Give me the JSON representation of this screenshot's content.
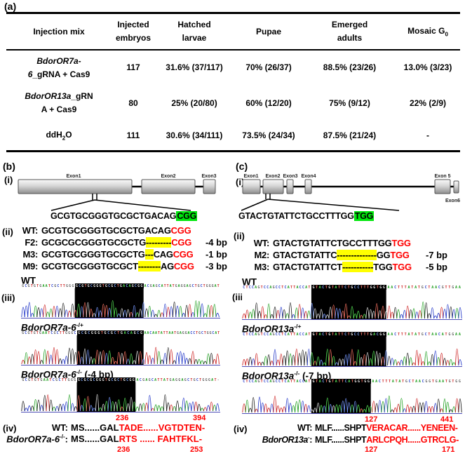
{
  "panel_labels": {
    "a": "(a)",
    "b": "(b)",
    "c": "(c)"
  },
  "roman": {
    "i": "(i)",
    "ii": "(ii)",
    "iii": "(iii)",
    "iv": "(iv)"
  },
  "colors": {
    "pam_green": "#00e60c",
    "mutation_red": "#ff0000",
    "deletion_yellow": "#ffff00"
  },
  "table": {
    "h_injection_mix": "Injection mix",
    "h_injected_1": "Injected",
    "h_injected_2": "embryos",
    "h_hatched_1": "Hatched",
    "h_hatched_2": "larvae",
    "h_pupae": "Pupae",
    "h_emerged_1": "Emerged",
    "h_emerged_2": "adults",
    "h_mosaic_main": "Mosaic G",
    "h_mosaic_sub": "0",
    "rows": [
      {
        "name_l1_it": "BdorOR7a-",
        "name_l1_rg": "",
        "name_l2_it": "6",
        "name_l2_rg": "_gRNA + Cas9",
        "injected": "117",
        "hatched": "31.6% (37/117)",
        "pupae": "70% (26/37)",
        "emerged": "88.5% (23/26)",
        "mosaic": "13.0% (3/23)"
      },
      {
        "name_l1_it": "BdorOR13a",
        "name_l1_rg": "_gRN",
        "name_l2_it": "",
        "name_l2_rg": "A + Cas9",
        "injected": "80",
        "hatched": "25% (20/80)",
        "pupae": "60% (12/20)",
        "emerged": "75% (9/12)",
        "mosaic": "22% (2/9)"
      },
      {
        "name_pre": "ddH",
        "name_sub": "2",
        "name_post": "O",
        "injected": "111",
        "hatched": "30.6% (34/111)",
        "pupae": "73.5% (24/34)",
        "emerged": "87.5% (21/24)",
        "mosaic": "-"
      }
    ]
  },
  "b": {
    "i": {
      "exons": [
        "Exon1",
        "Exon2",
        "Exon3"
      ],
      "seq": "GCGTGCGGGTGCGCTGACAG",
      "pam": "CGG"
    },
    "ii": {
      "rows": [
        {
          "label": "WT:",
          "pre": "GCGTGCGGGTGCGCTGACAG",
          "del": "",
          "mid": "",
          "pam": "CGG",
          "note": ""
        },
        {
          "label": "F2:",
          "pre": "GCGCGCGGGTGCGCTG",
          "del": "---------",
          "mid": "",
          "pam": "CGG",
          "note": "-4 bp"
        },
        {
          "label": "M3:",
          "pre": "GCGTGCGGGTGCGCTG",
          "del": "---",
          "mid": "CAG",
          "pam": "CGG",
          "note": "-1 bp"
        },
        {
          "label": "M9:",
          "pre": "GCGTGCGGGTGCGCT",
          "del": "--------",
          "mid": "AG",
          "pam": "CGG",
          "note": "-3 bp"
        }
      ]
    },
    "iii": {
      "traces": [
        {
          "label_base": "WT",
          "label_sup": "",
          "label_suffix": "",
          "seq_left": "GCGTGTGAATCGCTTGGG",
          "seq_boxed": "GCGTGCGGGTGCGCTGACAGCGG",
          "seq_right": "ACGAGCATTATGAGGAGCTGCTGGGAT",
          "box": [
            0.27,
            0.615
          ],
          "seed": 11
        },
        {
          "label_base": "BdorOR7a-6",
          "label_sup": "-/+",
          "label_suffix": "",
          "seq_left": "GCGTGTGAATCGCTTGGGC",
          "seq_boxed": "GCGCGGGTGCGCTGACAGCG",
          "seq_right": "AACAATATTAATGAGGACCTGCTGGCAT",
          "box": [
            0.28,
            0.615
          ],
          "seed": 23
        },
        {
          "label_base": "BdorOR7a-6",
          "label_sup": "-/-",
          "label_suffix": " (-4 bp)",
          "seq_left": "GCGTGTGAATCGCTTGGG",
          "seq_boxed": "GCGCGCGGGTGCGCTGCGG",
          "seq_right": "ACGAGCATTATGAGGAGCTGCTGGGAT-",
          "box": [
            0.28,
            0.575
          ],
          "seed": 37
        }
      ]
    },
    "iv": {
      "top_left": "236",
      "top_right": "394",
      "row1_label": "WT:",
      "row1_black": "MS......GAL",
      "row1_red": "TADE......VGTDTEN-",
      "row2_base": "BdorOR7a-6",
      "row2_sup": "-/-",
      "row2_colon": ":",
      "row2_black": "MS......GAL",
      "row2_red": "RTS ...... FAHTFKL-",
      "bottom_left": "236",
      "bottom_right": "253"
    }
  },
  "c": {
    "i": {
      "exons": [
        "Exon1",
        "Exon2",
        "Exon3",
        "Exon4",
        "Exon 5",
        "Exon6"
      ],
      "seq": "GTACTGTATTCTGCCTTTGG",
      "pam": "TGG"
    },
    "ii": {
      "rows": [
        {
          "label": "WT:",
          "pre": "GTACTGTATTCTGCCTTTGG",
          "del": "",
          "mid": "",
          "pam": "TGG",
          "note": ""
        },
        {
          "label": "M2:",
          "pre": "GTACTGTATTC",
          "del": "--------------",
          "mid": "GG",
          "pam": "TGG",
          "note": "-7 bp"
        },
        {
          "label": "M3:",
          "pre": "GTACTGTATTCT",
          "del": "-----------",
          "mid": "TGG",
          "pam": "TGG",
          "note": "-5 bp"
        }
      ]
    },
    "iii": {
      "traces": [
        {
          "label_base": "WT",
          "label_sup": "",
          "label_suffix": "",
          "seq_left": "CTCCAGTCCAGCCTCATTACCAT",
          "seq_boxed": "GTACTGTATTCTGCCTTTGGTGG",
          "seq_right": "AACTTTATATGCTAACGTTGAA",
          "box": [
            0.315,
            0.655
          ],
          "seed": 51
        },
        {
          "label_base": "BdorOR13a",
          "label_sup": "-/+",
          "label_suffix": "",
          "seq_left": "CTCCAGTCCAGCCTCATTACCAT",
          "seq_boxed": "GTACTGTATTCTGCCTTTGACGG",
          "seq_right": "AACTTTATATGCTAACATGGAA",
          "box": [
            0.315,
            0.655
          ],
          "seed": 63
        },
        {
          "label_base": "BdorOR13a",
          "label_sup": "-/-",
          "label_suffix": " (-7 bp)",
          "seq_left": "CTCCAGTCCAGCCTCATTACCAT",
          "seq_boxed": "GTACTGTATTCATGGTGG",
          "seq_right": "AACTTTATATGCTAACGGTGAATGTGG",
          "box": [
            0.315,
            0.585
          ],
          "seed": 77
        }
      ]
    },
    "iv": {
      "top_left": "127",
      "top_right": "441",
      "row1_label": "WT:",
      "row1_black": "MLF......SHPT",
      "row1_red": "VERACAR......YENEEN-",
      "row2_base": "BdorOR13a",
      "row2_sup": "-",
      "row2_colon": ":",
      "row2_black": "MLF......SHPT",
      "row2_red": "ARLCPQH......GTRCLG-",
      "bottom_left": "127",
      "bottom_right": "171"
    }
  }
}
